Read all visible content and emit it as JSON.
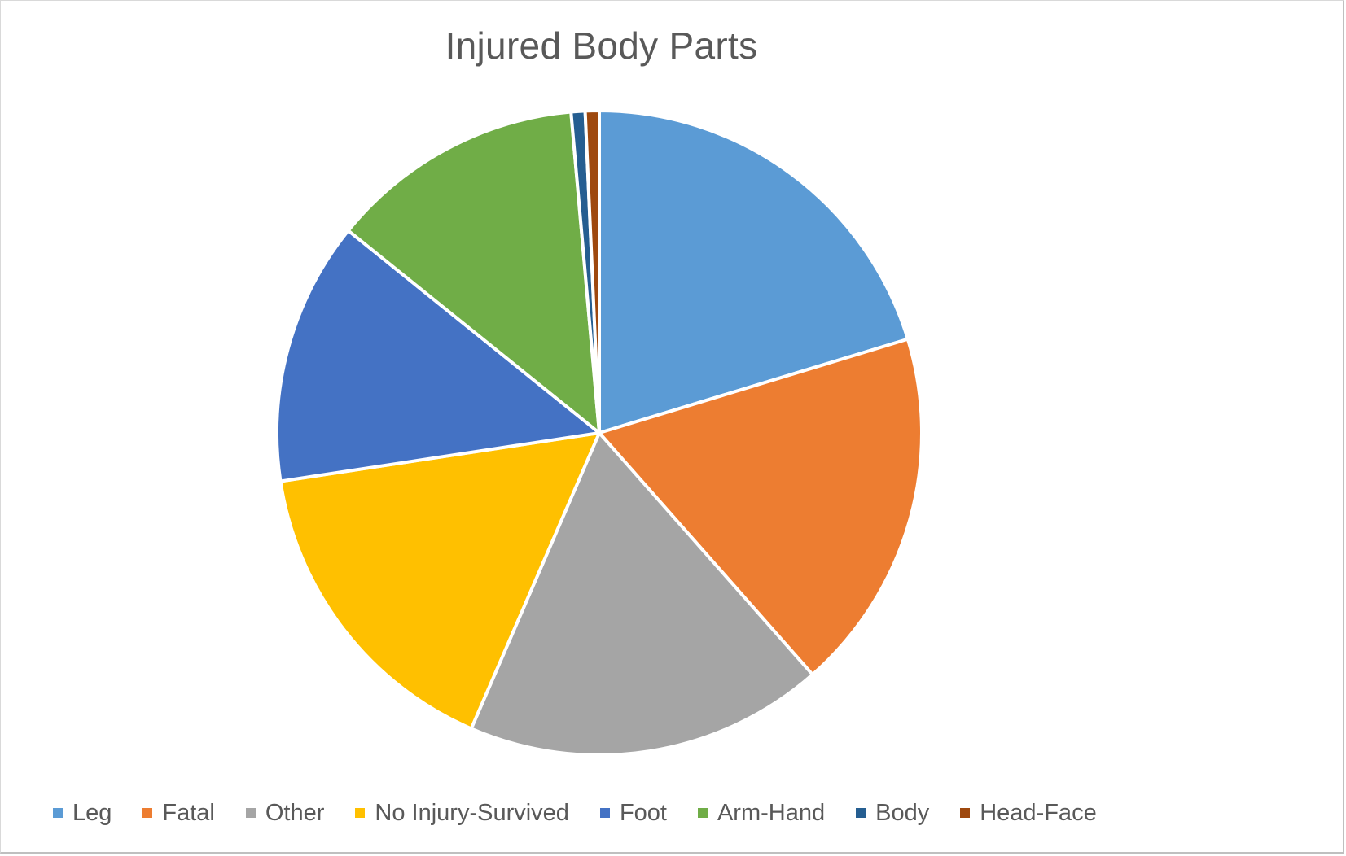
{
  "chart_data": {
    "type": "pie",
    "title": "Injured Body Parts",
    "legend_position": "bottom",
    "slices": [
      {
        "label": "Leg",
        "value": 20.3,
        "color": "#5B9BD5"
      },
      {
        "label": "Fatal",
        "value": 18.2,
        "color": "#ED7D31"
      },
      {
        "label": "Other",
        "value": 18.0,
        "color": "#A5A5A5"
      },
      {
        "label": "No Injury-Survived",
        "value": 16.1,
        "color": "#FFC000"
      },
      {
        "label": "Foot",
        "value": 13.2,
        "color": "#4472C4"
      },
      {
        "label": "Arm-Hand",
        "value": 12.8,
        "color": "#70AD47"
      },
      {
        "label": "Body",
        "value": 0.7,
        "color": "#255E91"
      },
      {
        "label": "Head-Face",
        "value": 0.7,
        "color": "#9E480E"
      }
    ]
  }
}
